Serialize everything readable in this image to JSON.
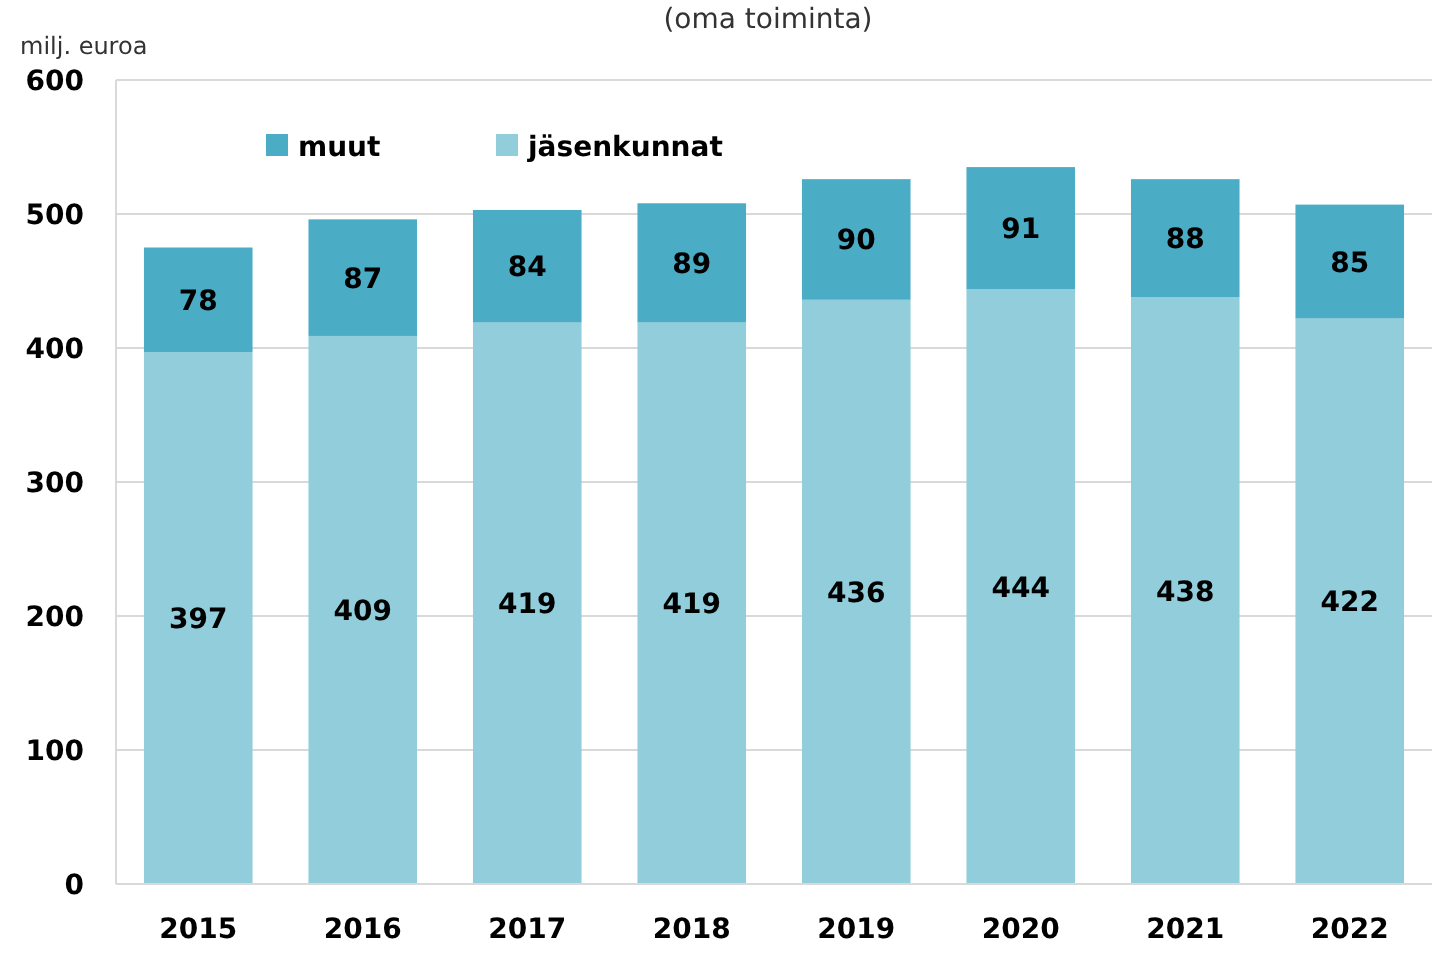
{
  "chart_data": {
    "type": "bar",
    "subtitle": "(oma toiminta)",
    "ylabel": "milj. euroa",
    "categories": [
      "2015",
      "2016",
      "2017",
      "2018",
      "2019",
      "2020",
      "2021",
      "2022"
    ],
    "stacked": true,
    "series": [
      {
        "name": "jäsenkunnat",
        "color": "#92cddc",
        "values": [
          397,
          409,
          419,
          419,
          436,
          444,
          438,
          422
        ]
      },
      {
        "name": "muut",
        "color": "#4bacc6",
        "values": [
          78,
          87,
          84,
          89,
          90,
          91,
          88,
          85
        ]
      }
    ],
    "ylim": [
      0,
      600
    ],
    "yticks": [
      0,
      100,
      200,
      300,
      400,
      500,
      600
    ],
    "grid": "y",
    "legend": "top left",
    "data_labels": true
  }
}
